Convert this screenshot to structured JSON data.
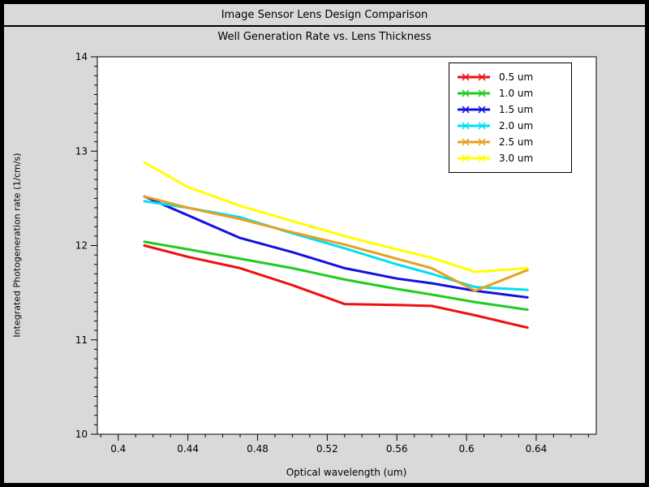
{
  "window": {
    "title": "Image Sensor Lens Design Comparison"
  },
  "chart_data": {
    "type": "line",
    "title": "Image Sensor Lens Design Comparison",
    "subtitle": "Well Generation Rate vs. Lens Thickness",
    "xlabel": "Optical wavelength (um)",
    "ylabel": "Integrated Photogeneration rate (1/cm/s)",
    "xlim": [
      0.388,
      0.6745
    ],
    "ylim": [
      10,
      14
    ],
    "grid": false,
    "legend_position": "top-right",
    "xticks": [
      {
        "v": 0.4,
        "label": "0.4"
      },
      {
        "v": 0.44,
        "label": "0.44"
      },
      {
        "v": 0.48,
        "label": "0.48"
      },
      {
        "v": 0.52,
        "label": "0.52"
      },
      {
        "v": 0.56,
        "label": "0.56"
      },
      {
        "v": 0.6,
        "label": "0.6"
      },
      {
        "v": 0.64,
        "label": "0.64"
      }
    ],
    "yticks": [
      {
        "v": 10,
        "label": "10"
      },
      {
        "v": 11,
        "label": "11"
      },
      {
        "v": 12,
        "label": "12"
      },
      {
        "v": 13,
        "label": "13"
      },
      {
        "v": 14,
        "label": "14"
      }
    ],
    "x_minor_step": 0.01,
    "y_minor_step": 0.1,
    "x": [
      0.415,
      0.44,
      0.47,
      0.5,
      0.53,
      0.56,
      0.58,
      0.605,
      0.635
    ],
    "series": [
      {
        "name": "0.5 um",
        "color": "#ee1010",
        "values": [
          12.0,
          11.88,
          11.76,
          11.58,
          11.38,
          11.37,
          11.36,
          11.26,
          11.13
        ]
      },
      {
        "name": "1.0 um",
        "color": "#1ecc1e",
        "values": [
          12.04,
          11.96,
          11.86,
          11.76,
          11.64,
          11.54,
          11.48,
          11.4,
          11.32
        ]
      },
      {
        "name": "1.5 um",
        "color": "#1212dd",
        "values": [
          12.52,
          12.32,
          12.08,
          11.93,
          11.76,
          11.65,
          11.6,
          11.52,
          11.45
        ]
      },
      {
        "name": "2.0 um",
        "color": "#00e0f0",
        "values": [
          12.47,
          12.4,
          12.3,
          12.13,
          11.97,
          11.8,
          11.7,
          11.56,
          11.53
        ]
      },
      {
        "name": "2.5 um",
        "color": "#e8a020",
        "values": [
          12.52,
          12.4,
          12.28,
          12.14,
          12.01,
          11.86,
          11.76,
          11.52,
          11.74
        ]
      },
      {
        "name": "3.0 um",
        "color": "#ffff00",
        "values": [
          12.88,
          12.62,
          12.42,
          12.26,
          12.1,
          11.96,
          11.87,
          11.72,
          11.76
        ]
      }
    ]
  }
}
